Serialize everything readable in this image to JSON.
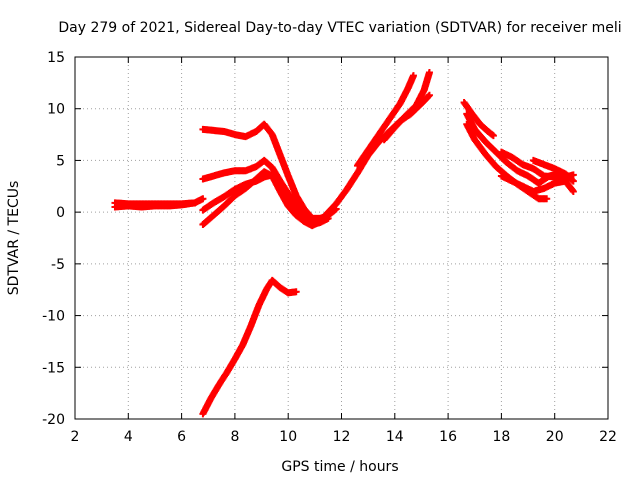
{
  "chart_data": {
    "type": "scatter",
    "title": "Day 279 of 2021, Sidereal Day-to-day VTEC variation (SDTVAR) for receiver meli",
    "xlabel": "GPS time / hours",
    "ylabel": "SDTVAR / TECUs",
    "xlim": [
      2,
      22
    ],
    "ylim": [
      -20,
      15
    ],
    "xticks": [
      2,
      4,
      6,
      8,
      10,
      12,
      14,
      16,
      18,
      20,
      22
    ],
    "yticks": [
      -20,
      -15,
      -10,
      -5,
      0,
      5,
      10,
      15
    ],
    "grid": true,
    "marker": "plus",
    "color": "#ff0000",
    "series": [
      {
        "name": "arc-flat-0",
        "points": [
          [
            3.5,
            0.5
          ],
          [
            4.0,
            0.6
          ],
          [
            4.5,
            0.5
          ],
          [
            5.0,
            0.6
          ],
          [
            5.5,
            0.6
          ],
          [
            6.0,
            0.7
          ],
          [
            6.5,
            0.9
          ],
          [
            6.8,
            1.3
          ]
        ]
      },
      {
        "name": "arc-flat-0b",
        "points": [
          [
            3.5,
            0.9
          ],
          [
            4.0,
            0.8
          ],
          [
            4.5,
            0.8
          ],
          [
            5.0,
            0.8
          ],
          [
            5.5,
            0.8
          ],
          [
            6.0,
            0.8
          ],
          [
            6.5,
            0.9
          ]
        ]
      },
      {
        "name": "arc-top-8",
        "points": [
          [
            6.8,
            8.0
          ],
          [
            7.2,
            7.9
          ],
          [
            7.6,
            7.8
          ],
          [
            8.0,
            7.5
          ],
          [
            8.4,
            7.3
          ],
          [
            8.8,
            7.8
          ],
          [
            9.1,
            8.5
          ],
          [
            9.4,
            7.5
          ],
          [
            9.7,
            5.5
          ],
          [
            10.0,
            3.5
          ],
          [
            10.3,
            1.6
          ],
          [
            10.6,
            0.3
          ],
          [
            10.9,
            -0.6
          ],
          [
            11.2,
            -0.6
          ],
          [
            11.5,
            -0.3
          ],
          [
            11.8,
            0.3
          ]
        ]
      },
      {
        "name": "arc-mid-4",
        "points": [
          [
            6.8,
            3.2
          ],
          [
            7.2,
            3.5
          ],
          [
            7.6,
            3.8
          ],
          [
            8.0,
            4.0
          ],
          [
            8.4,
            4.0
          ],
          [
            8.8,
            4.4
          ],
          [
            9.1,
            5.0
          ],
          [
            9.4,
            4.3
          ],
          [
            9.7,
            3.0
          ],
          [
            10.0,
            1.8
          ],
          [
            10.3,
            0.6
          ],
          [
            10.6,
            -0.4
          ],
          [
            10.9,
            -1.2
          ],
          [
            11.2,
            -1.0
          ],
          [
            11.5,
            -0.6
          ]
        ]
      },
      {
        "name": "arc-lower-a",
        "points": [
          [
            6.8,
            0.2
          ],
          [
            7.2,
            0.9
          ],
          [
            7.6,
            1.5
          ],
          [
            8.0,
            2.2
          ],
          [
            8.4,
            2.7
          ],
          [
            8.8,
            3.0
          ],
          [
            9.1,
            3.4
          ],
          [
            9.4,
            3.6
          ],
          [
            9.7,
            2.5
          ],
          [
            10.0,
            1.2
          ],
          [
            10.3,
            0.2
          ],
          [
            10.6,
            -0.5
          ],
          [
            10.9,
            -0.8
          ]
        ]
      },
      {
        "name": "arc-lower-b",
        "points": [
          [
            6.8,
            -1.2
          ],
          [
            7.2,
            -0.3
          ],
          [
            7.6,
            0.6
          ],
          [
            8.0,
            1.6
          ],
          [
            8.4,
            2.3
          ],
          [
            8.8,
            3.2
          ],
          [
            9.1,
            3.9
          ],
          [
            9.4,
            3.5
          ],
          [
            9.7,
            2.0
          ],
          [
            10.0,
            0.6
          ],
          [
            10.3,
            -0.3
          ],
          [
            10.6,
            -0.9
          ],
          [
            10.9,
            -1.3
          ],
          [
            11.2,
            -0.9
          ]
        ]
      },
      {
        "name": "arc-rise",
        "points": [
          [
            11.4,
            -0.3
          ],
          [
            11.8,
            0.8
          ],
          [
            12.2,
            2.2
          ],
          [
            12.6,
            3.8
          ],
          [
            13.0,
            5.5
          ],
          [
            13.4,
            6.8
          ],
          [
            13.8,
            7.8
          ],
          [
            14.2,
            8.8
          ],
          [
            14.6,
            9.5
          ],
          [
            15.0,
            10.5
          ],
          [
            15.3,
            11.3
          ]
        ]
      },
      {
        "name": "arc-rise-b",
        "points": [
          [
            12.6,
            4.5
          ],
          [
            13.0,
            6.0
          ],
          [
            13.4,
            7.5
          ],
          [
            13.8,
            9.0
          ],
          [
            14.2,
            10.5
          ],
          [
            14.5,
            12.0
          ],
          [
            14.7,
            13.2
          ]
        ]
      },
      {
        "name": "arc-rise-c",
        "points": [
          [
            13.6,
            7.0
          ],
          [
            14.0,
            8.2
          ],
          [
            14.4,
            9.3
          ],
          [
            14.8,
            10.3
          ],
          [
            15.1,
            11.8
          ],
          [
            15.3,
            13.5
          ]
        ]
      },
      {
        "name": "arc-late-a",
        "points": [
          [
            16.6,
            10.6
          ],
          [
            16.9,
            9.5
          ],
          [
            17.2,
            8.5
          ],
          [
            17.5,
            7.8
          ],
          [
            17.7,
            7.4
          ]
        ]
      },
      {
        "name": "arc-late-b",
        "points": [
          [
            16.7,
            9.5
          ],
          [
            17.0,
            8.0
          ],
          [
            17.4,
            6.8
          ],
          [
            17.8,
            5.8
          ],
          [
            18.2,
            4.8
          ],
          [
            18.6,
            4.0
          ],
          [
            19.0,
            3.5
          ],
          [
            19.4,
            2.8
          ],
          [
            19.8,
            3.5
          ],
          [
            20.2,
            3.7
          ],
          [
            20.6,
            3.3
          ]
        ]
      },
      {
        "name": "arc-late-c",
        "points": [
          [
            16.7,
            8.5
          ],
          [
            17.0,
            7.0
          ],
          [
            17.4,
            5.6
          ],
          [
            17.8,
            4.4
          ],
          [
            18.2,
            3.5
          ],
          [
            18.6,
            2.7
          ],
          [
            19.0,
            2.0
          ],
          [
            19.4,
            1.3
          ],
          [
            19.7,
            1.3
          ]
        ]
      },
      {
        "name": "arc-late-d",
        "points": [
          [
            18.0,
            5.8
          ],
          [
            18.4,
            5.3
          ],
          [
            18.8,
            4.6
          ],
          [
            19.2,
            4.2
          ],
          [
            19.6,
            3.5
          ],
          [
            20.0,
            3.4
          ],
          [
            20.4,
            3.4
          ],
          [
            20.7,
            3.6
          ]
        ]
      },
      {
        "name": "arc-late-e",
        "points": [
          [
            18.0,
            3.5
          ],
          [
            18.4,
            3.0
          ],
          [
            18.8,
            2.5
          ],
          [
            19.2,
            2.0
          ],
          [
            19.6,
            2.3
          ],
          [
            20.0,
            2.8
          ],
          [
            20.4,
            3.0
          ],
          [
            20.7,
            2.0
          ]
        ]
      },
      {
        "name": "arc-late-f",
        "points": [
          [
            19.2,
            5.0
          ],
          [
            19.6,
            4.6
          ],
          [
            20.0,
            4.2
          ],
          [
            20.4,
            3.7
          ],
          [
            20.7,
            3.0
          ]
        ]
      },
      {
        "name": "arc-low",
        "points": [
          [
            6.8,
            -19.5
          ],
          [
            7.1,
            -18.0
          ],
          [
            7.4,
            -16.7
          ],
          [
            7.7,
            -15.5
          ],
          [
            8.0,
            -14.2
          ],
          [
            8.3,
            -12.8
          ],
          [
            8.6,
            -11.0
          ],
          [
            8.9,
            -9.0
          ],
          [
            9.2,
            -7.4
          ],
          [
            9.4,
            -6.6
          ],
          [
            9.7,
            -7.3
          ],
          [
            10.0,
            -7.8
          ],
          [
            10.3,
            -7.7
          ]
        ]
      }
    ]
  }
}
